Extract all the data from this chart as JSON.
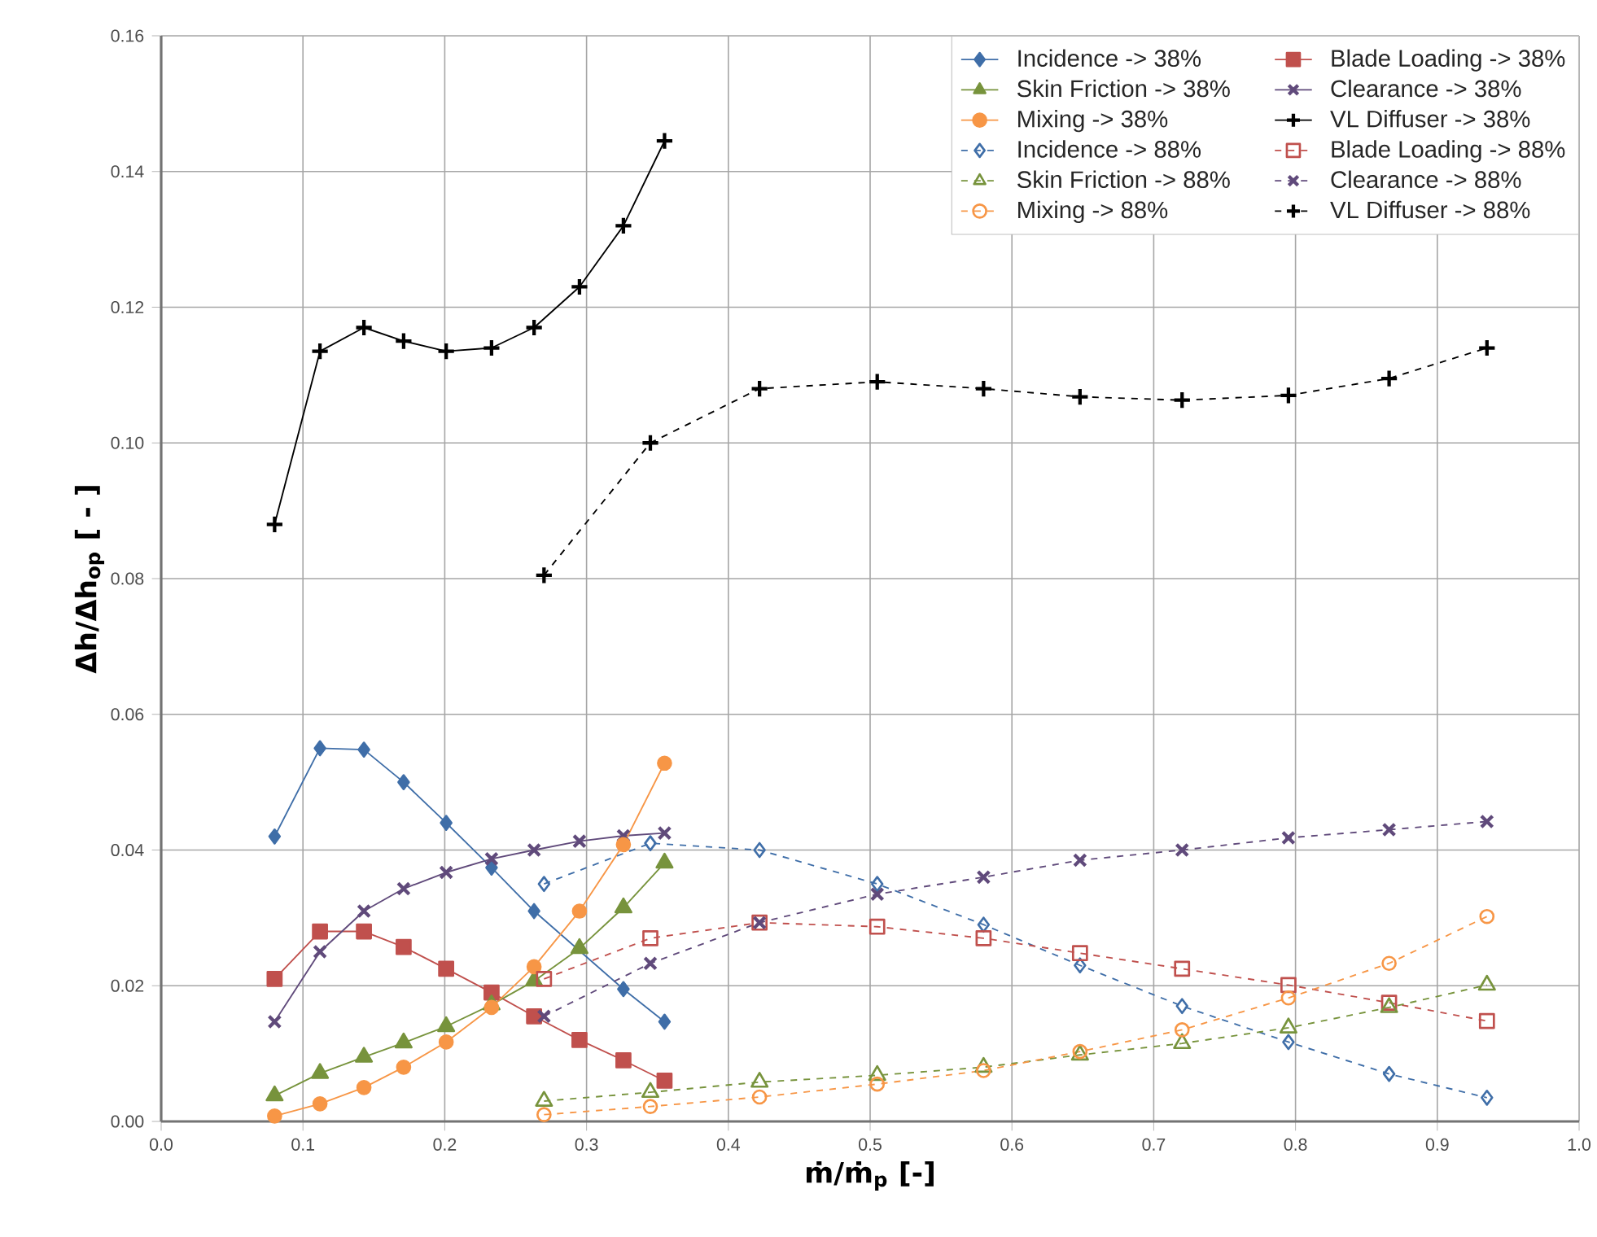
{
  "chart_data": {
    "type": "line",
    "xlabel": "ṁ/ṁ$_{p}$ [-]",
    "ylabel": "Δh/Δh$_{op}$ [ - ]",
    "xlim": [
      0,
      1
    ],
    "ylim": [
      0,
      0.16
    ],
    "xticks": [
      {
        "value": 0,
        "label": "0.0"
      },
      {
        "value": 0.1,
        "label": "0.1"
      },
      {
        "value": 0.2,
        "label": "0.2"
      },
      {
        "value": 0.3,
        "label": "0.3"
      },
      {
        "value": 0.4,
        "label": "0.4"
      },
      {
        "value": 0.5,
        "label": "0.5"
      },
      {
        "value": 0.6,
        "label": "0.6"
      },
      {
        "value": 0.7,
        "label": "0.7"
      },
      {
        "value": 0.8,
        "label": "0.8"
      },
      {
        "value": 0.9,
        "label": "0.9"
      },
      {
        "value": 1,
        "label": "1.0"
      }
    ],
    "yticks": [
      {
        "value": 0,
        "label": "0.00"
      },
      {
        "value": 0.02,
        "label": "0.02"
      },
      {
        "value": 0.04,
        "label": "0.04"
      },
      {
        "value": 0.06,
        "label": "0.06"
      },
      {
        "value": 0.08,
        "label": "0.08"
      },
      {
        "value": 0.1,
        "label": "0.10"
      },
      {
        "value": 0.12,
        "label": "0.12"
      },
      {
        "value": 0.14,
        "label": "0.14"
      },
      {
        "value": 0.16,
        "label": "0.16"
      }
    ],
    "grid": true,
    "legend": "top right",
    "series": [
      {
        "name": "Incidence -> 38%",
        "color": "#3f6ea8",
        "marker": "diamond",
        "line_style": "solid",
        "x": [
          0.08,
          0.112,
          0.143,
          0.171,
          0.201,
          0.233,
          0.263,
          0.326,
          0.355
        ],
        "values": [
          0.042,
          0.055,
          0.0548,
          0.05,
          0.044,
          0.0374,
          0.031,
          0.0195,
          0.0147
        ]
      },
      {
        "name": "Blade Loading -> 38%",
        "color": "#c0504d",
        "marker": "square",
        "line_style": "solid",
        "x": [
          0.08,
          0.112,
          0.143,
          0.171,
          0.201,
          0.233,
          0.263,
          0.295,
          0.326,
          0.355
        ],
        "values": [
          0.021,
          0.028,
          0.028,
          0.0257,
          0.0225,
          0.019,
          0.0155,
          0.012,
          0.009,
          0.006
        ]
      },
      {
        "name": "Skin Friction -> 38%",
        "color": "#77933c",
        "marker": "triangle",
        "line_style": "solid",
        "x": [
          0.08,
          0.112,
          0.143,
          0.171,
          0.201,
          0.233,
          0.263,
          0.295,
          0.326,
          0.355
        ],
        "values": [
          0.0038,
          0.0071,
          0.0095,
          0.0116,
          0.014,
          0.0172,
          0.0207,
          0.0255,
          0.0315,
          0.0381
        ]
      },
      {
        "name": "Clearance -> 38%",
        "color": "#604a7b",
        "marker": "cross",
        "line_style": "solid",
        "x": [
          0.08,
          0.112,
          0.143,
          0.171,
          0.201,
          0.233,
          0.263,
          0.295,
          0.326,
          0.355
        ],
        "values": [
          0.0147,
          0.025,
          0.031,
          0.0343,
          0.0367,
          0.0387,
          0.04,
          0.0413,
          0.0421,
          0.0425
        ]
      },
      {
        "name": "Mixing -> 38%",
        "color": "#f79646",
        "marker": "circle",
        "line_style": "solid",
        "x": [
          0.08,
          0.112,
          0.143,
          0.171,
          0.201,
          0.233,
          0.263,
          0.295,
          0.326,
          0.355
        ],
        "values": [
          0.0008,
          0.0026,
          0.005,
          0.008,
          0.0117,
          0.0168,
          0.0228,
          0.031,
          0.0408,
          0.0528
        ]
      },
      {
        "name": "VL Diffuser -> 38%",
        "color": "#000000",
        "marker": "plus",
        "line_style": "solid",
        "x": [
          0.08,
          0.112,
          0.143,
          0.171,
          0.201,
          0.233,
          0.263,
          0.295,
          0.326,
          0.355
        ],
        "values": [
          0.088,
          0.1135,
          0.117,
          0.115,
          0.1135,
          0.114,
          0.117,
          0.123,
          0.132,
          0.1445
        ]
      },
      {
        "name": "Incidence -> 88%",
        "color": "#3f6ea8",
        "marker": "diamond",
        "line_style": "dashed",
        "x": [
          0.27,
          0.345,
          0.422,
          0.505,
          0.58,
          0.648,
          0.72,
          0.795,
          0.866,
          0.935
        ],
        "values": [
          0.035,
          0.041,
          0.04,
          0.035,
          0.029,
          0.023,
          0.017,
          0.0117,
          0.007,
          0.0035
        ]
      },
      {
        "name": "Blade Loading -> 88%",
        "color": "#c0504d",
        "marker": "square",
        "line_style": "dashed",
        "x": [
          0.27,
          0.345,
          0.422,
          0.505,
          0.58,
          0.648,
          0.72,
          0.795,
          0.866,
          0.935
        ],
        "values": [
          0.021,
          0.027,
          0.0293,
          0.0287,
          0.027,
          0.0248,
          0.0225,
          0.0201,
          0.0175,
          0.0148
        ]
      },
      {
        "name": "Skin Friction -> 88%",
        "color": "#77933c",
        "marker": "triangle",
        "line_style": "dashed",
        "x": [
          0.27,
          0.345,
          0.422,
          0.505,
          0.58,
          0.648,
          0.72,
          0.795,
          0.866,
          0.935
        ],
        "values": [
          0.003,
          0.0043,
          0.0058,
          0.0068,
          0.008,
          0.0098,
          0.0115,
          0.0138,
          0.0168,
          0.0201
        ]
      },
      {
        "name": "Clearance -> 88%",
        "color": "#604a7b",
        "marker": "cross",
        "line_style": "dashed",
        "x": [
          0.27,
          0.345,
          0.422,
          0.505,
          0.58,
          0.648,
          0.72,
          0.795,
          0.866,
          0.935
        ],
        "values": [
          0.0155,
          0.0233,
          0.0293,
          0.0335,
          0.036,
          0.0385,
          0.04,
          0.0418,
          0.043,
          0.0442
        ]
      },
      {
        "name": "Mixing -> 88%",
        "color": "#f79646",
        "marker": "circle",
        "line_style": "dashed",
        "x": [
          0.27,
          0.345,
          0.422,
          0.505,
          0.58,
          0.648,
          0.72,
          0.795,
          0.866,
          0.935
        ],
        "values": [
          0.001,
          0.0022,
          0.0036,
          0.0055,
          0.0075,
          0.0103,
          0.0135,
          0.0182,
          0.0233,
          0.0302
        ]
      },
      {
        "name": "VL Diffuser -> 88%",
        "color": "#000000",
        "marker": "plus",
        "line_style": "dashed",
        "x": [
          0.27,
          0.345,
          0.422,
          0.505,
          0.58,
          0.648,
          0.72,
          0.795,
          0.866,
          0.935
        ],
        "values": [
          0.0805,
          0.1,
          0.108,
          0.109,
          0.108,
          0.1068,
          0.1063,
          0.107,
          0.1095,
          0.114
        ]
      }
    ]
  }
}
